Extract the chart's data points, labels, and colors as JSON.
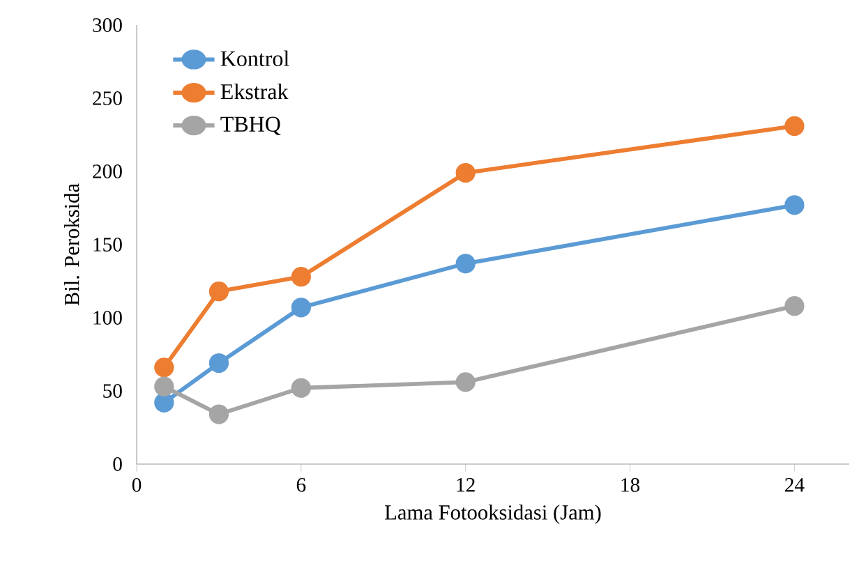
{
  "chart_data": {
    "type": "line",
    "xlabel": "Lama Fotooksidasi (Jam)",
    "ylabel": "Bil. Peroksida",
    "x": [
      1,
      3,
      6,
      12,
      24
    ],
    "series": [
      {
        "name": "Kontrol",
        "color": "#5b9bd5",
        "values": [
          42,
          69,
          107,
          137,
          177
        ]
      },
      {
        "name": "Ekstrak",
        "color": "#ed7d31",
        "values": [
          66,
          118,
          128,
          199,
          231
        ]
      },
      {
        "name": "TBHQ",
        "color": "#a5a5a5",
        "values": [
          53,
          34,
          52,
          56,
          108
        ]
      }
    ],
    "xlim": [
      0,
      26
    ],
    "ylim": [
      0,
      300
    ],
    "xticks": [
      0,
      6,
      12,
      18,
      24
    ],
    "yticks": [
      0,
      50,
      100,
      150,
      200,
      250,
      300
    ],
    "grid": false,
    "legend": "top left",
    "marker": "circle",
    "line_style": "solid"
  }
}
